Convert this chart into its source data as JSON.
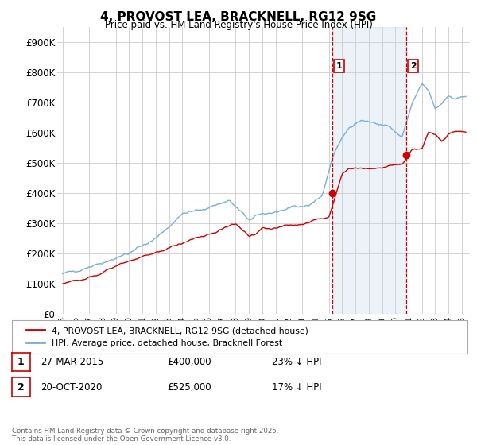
{
  "title": "4, PROVOST LEA, BRACKNELL, RG12 9SG",
  "subtitle": "Price paid vs. HM Land Registry's House Price Index (HPI)",
  "ylabel_ticks": [
    "£0",
    "£100K",
    "£200K",
    "£300K",
    "£400K",
    "£500K",
    "£600K",
    "£700K",
    "£800K",
    "£900K"
  ],
  "ytick_values": [
    0,
    100000,
    200000,
    300000,
    400000,
    500000,
    600000,
    700000,
    800000,
    900000
  ],
  "ylim": [
    0,
    950000
  ],
  "xtick_labels": [
    "95",
    "96",
    "97",
    "98",
    "99",
    "00",
    "01",
    "02",
    "03",
    "04",
    "05",
    "06",
    "07",
    "08",
    "09",
    "10",
    "11",
    "12",
    "13",
    "14",
    "15",
    "16",
    "17",
    "18",
    "19",
    "20",
    "21",
    "22",
    "23",
    "24",
    "25"
  ],
  "xtick_values": [
    1995,
    1996,
    1997,
    1998,
    1999,
    2000,
    2001,
    2002,
    2003,
    2004,
    2005,
    2006,
    2007,
    2008,
    2009,
    2010,
    2011,
    2012,
    2013,
    2014,
    2015,
    2016,
    2017,
    2018,
    2019,
    2020,
    2021,
    2022,
    2023,
    2024,
    2025
  ],
  "grid_color": "#cccccc",
  "hpi_color": "#7aaed6",
  "hpi_fill_color": "#ddeeff",
  "sale_color": "#cc0000",
  "sale1_x": 2015.24,
  "sale1_y": 400000,
  "sale2_x": 2020.8,
  "sale2_y": 525000,
  "vline1_x": 2015.24,
  "vline2_x": 2020.8,
  "vline_color": "#cc0000",
  "legend_line1": "4, PROVOST LEA, BRACKNELL, RG12 9SG (detached house)",
  "legend_line2": "HPI: Average price, detached house, Bracknell Forest",
  "table_row1_num": "1",
  "table_row1_date": "27-MAR-2015",
  "table_row1_price": "£400,000",
  "table_row1_hpi": "23% ↓ HPI",
  "table_row2_num": "2",
  "table_row2_date": "20-OCT-2020",
  "table_row2_price": "£525,000",
  "table_row2_hpi": "17% ↓ HPI",
  "footer": "Contains HM Land Registry data © Crown copyright and database right 2025.\nThis data is licensed under the Open Government Licence v3.0.",
  "background_color": "#ffffff"
}
